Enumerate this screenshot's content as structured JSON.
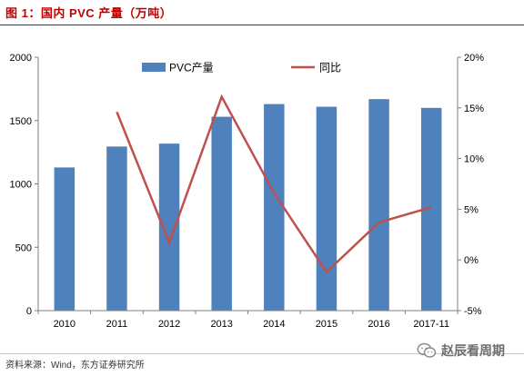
{
  "header": {
    "title": "图 1：国内 PVC 产量（万吨）"
  },
  "footer": {
    "source": "资料来源：Wind，东方证券研究所"
  },
  "watermark": {
    "label": "赵辰看周期",
    "icon": "wechat-icon"
  },
  "colors": {
    "accent": "#c00000",
    "bar": "#4f81bd",
    "line": "#c0504d"
  },
  "chart_data": {
    "type": "bar",
    "title": "",
    "xlabel": "",
    "ylabel": "",
    "categories": [
      "2010",
      "2011",
      "2012",
      "2013",
      "2014",
      "2015",
      "2016",
      "2017-11"
    ],
    "series": [
      {
        "name": "PVC产量",
        "type": "bar",
        "axis": "left",
        "values": [
          1130,
          1295,
          1318,
          1530,
          1630,
          1609,
          1669,
          1600
        ]
      },
      {
        "name": "同比",
        "type": "line",
        "axis": "right",
        "unit": "%",
        "values": [
          null,
          14.6,
          1.7,
          16.1,
          6.6,
          -1.2,
          3.7,
          5.2
        ]
      }
    ],
    "ylim": [
      0,
      2000
    ],
    "yticks": [
      0,
      500,
      1000,
      1500,
      2000
    ],
    "y2lim": [
      -5,
      20
    ],
    "y2ticks": [
      -5,
      0,
      5,
      10,
      15,
      20
    ],
    "y2tick_labels": [
      "-5%",
      "0%",
      "5%",
      "10%",
      "15%",
      "20%"
    ],
    "grid": false,
    "legend": "top"
  }
}
